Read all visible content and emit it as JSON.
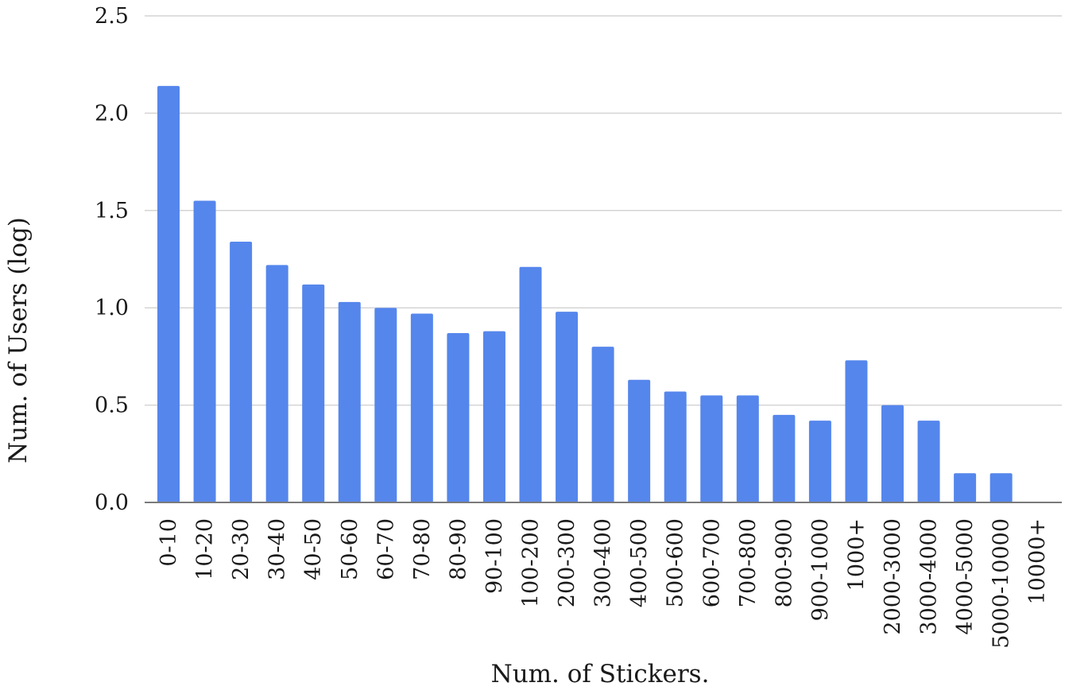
{
  "chart_data": {
    "type": "bar",
    "title": "",
    "xlabel": "Num. of Stickers.",
    "ylabel": "Num. of Users (log)",
    "ylim": [
      0,
      2.5
    ],
    "yticks": [
      "0.0",
      "0.5",
      "1.0",
      "1.5",
      "2.0",
      "2.5"
    ],
    "grid": true,
    "legend": "none",
    "bar_color": "#5586ec",
    "categories": [
      "0-10",
      "10-20",
      "20-30",
      "30-40",
      "40-50",
      "50-60",
      "60-70",
      "70-80",
      "80-90",
      "90-100",
      "100-200",
      "200-300",
      "300-400",
      "400-500",
      "500-600",
      "600-700",
      "700-800",
      "800-900",
      "900-1000",
      "1000+",
      "2000-3000",
      "3000-4000",
      "4000-5000",
      "5000-10000",
      "10000+"
    ],
    "values": [
      2.14,
      1.55,
      1.34,
      1.22,
      1.12,
      1.03,
      1.0,
      0.97,
      0.87,
      0.88,
      1.21,
      0.98,
      0.8,
      0.63,
      0.57,
      0.55,
      0.55,
      0.45,
      0.42,
      0.73,
      0.5,
      0.42,
      0.15,
      0.15,
      0.0
    ]
  }
}
